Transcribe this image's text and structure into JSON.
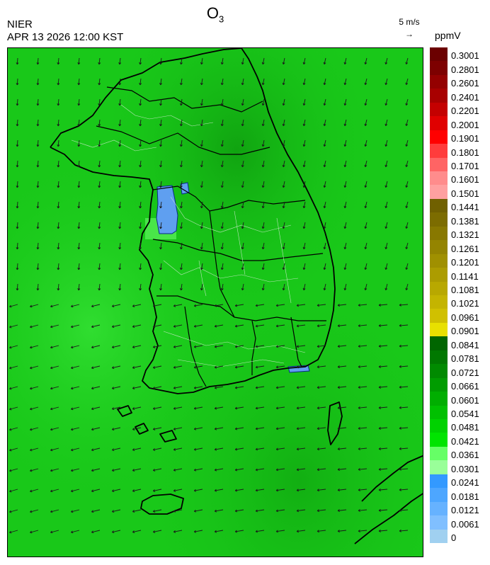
{
  "header": {
    "pollutant": "O",
    "pollutant_sub": "3",
    "agency": "NIER",
    "datetime": "APR 13 2026 12:00 KST",
    "ref_vector": "5 m/s",
    "ref_arrow": "→",
    "unit": "ppmV"
  },
  "legend": {
    "labels": [
      "0.3001",
      "0.2801",
      "0.2601",
      "0.2401",
      "0.2201",
      "0.2001",
      "0.1901",
      "0.1801",
      "0.1701",
      "0.1601",
      "0.1501",
      "0.1441",
      "0.1381",
      "0.1321",
      "0.1261",
      "0.1201",
      "0.1141",
      "0.1081",
      "0.1021",
      "0.0961",
      "0.0901",
      "0.0841",
      "0.0781",
      "0.0721",
      "0.0661",
      "0.0601",
      "0.0541",
      "0.0481",
      "0.0421",
      "0.0361",
      "0.0301",
      "0.0241",
      "0.0181",
      "0.0121",
      "0.0061",
      "0"
    ],
    "colors": [
      "#6b0000",
      "#7d0000",
      "#940000",
      "#a80000",
      "#c40000",
      "#e00000",
      "#ff0000",
      "#ff3c3c",
      "#ff6464",
      "#ff8c8c",
      "#ffa0a0",
      "#706000",
      "#7c6c00",
      "#887800",
      "#948400",
      "#a09000",
      "#ac9c00",
      "#b8a800",
      "#c4b400",
      "#d0c000",
      "#e8e000",
      "#006600",
      "#007800",
      "#008a00",
      "#009c00",
      "#00ae00",
      "#00c000",
      "#00d200",
      "#00e400",
      "#66ff66",
      "#99ff99",
      "#3399ff",
      "#4da6ff",
      "#66b2ff",
      "#80bfff",
      "#a0d0f0"
    ]
  },
  "map": {
    "field_dominant_color": "#19c819",
    "low_region_color": "#5f9ff0",
    "wind_direction": "westward-southwestward"
  }
}
